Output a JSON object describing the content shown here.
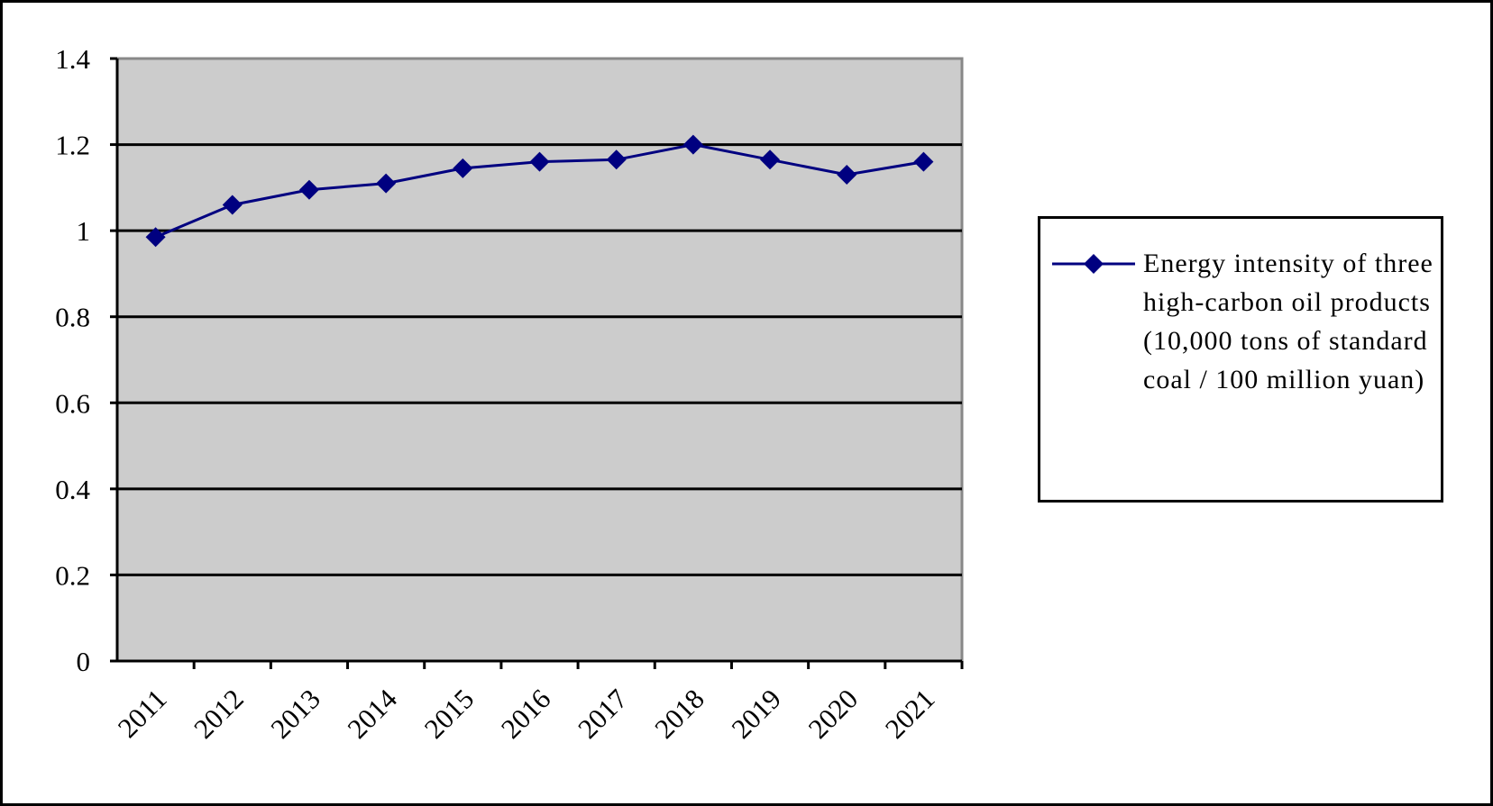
{
  "chart_data": {
    "type": "line",
    "categories": [
      "2011",
      "2012",
      "2013",
      "2014",
      "2015",
      "2016",
      "2017",
      "2018",
      "2019",
      "2020",
      "2021"
    ],
    "series": [
      {
        "name": "Energy intensity of three high-carbon oil products (10,000 tons of standard coal / 100 million yuan)",
        "color": "#000080",
        "values": [
          0.985,
          1.06,
          1.095,
          1.11,
          1.145,
          1.16,
          1.165,
          1.2,
          1.165,
          1.13,
          1.16
        ]
      }
    ],
    "ylim": [
      0,
      1.4
    ],
    "yticks": [
      0,
      0.2,
      0.4,
      0.6,
      0.8,
      1,
      1.2,
      1.4
    ],
    "grid": true,
    "legend": "right"
  }
}
